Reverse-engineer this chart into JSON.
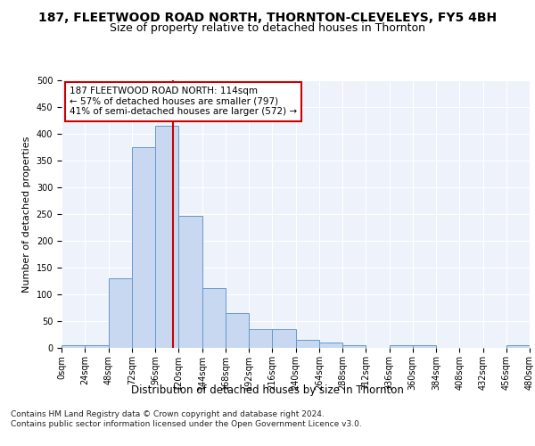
{
  "title": "187, FLEETWOOD ROAD NORTH, THORNTON-CLEVELEYS, FY5 4BH",
  "subtitle": "Size of property relative to detached houses in Thornton",
  "xlabel": "Distribution of detached houses by size in Thornton",
  "ylabel": "Number of detached properties",
  "bar_color": "#c8d8f0",
  "bar_edge_color": "#6699cc",
  "background_color": "#eef2fb",
  "bin_width": 24,
  "bin_starts": [
    0,
    24,
    48,
    72,
    96,
    120,
    144,
    168,
    192,
    216,
    240,
    264,
    288,
    312,
    336,
    360,
    384,
    408,
    432,
    456
  ],
  "bar_heights": [
    5,
    5,
    130,
    375,
    415,
    247,
    111,
    65,
    35,
    35,
    15,
    10,
    5,
    0,
    5,
    5,
    0,
    0,
    0,
    5
  ],
  "property_size": 114,
  "marker_line_color": "#cc0000",
  "annotation_line1": "187 FLEETWOOD ROAD NORTH: 114sqm",
  "annotation_line2": "← 57% of detached houses are smaller (797)",
  "annotation_line3": "41% of semi-detached houses are larger (572) →",
  "annotation_box_color": "#ffffff",
  "annotation_box_edge_color": "#cc0000",
  "ylim": [
    0,
    500
  ],
  "yticks": [
    0,
    50,
    100,
    150,
    200,
    250,
    300,
    350,
    400,
    450,
    500
  ],
  "footer_line1": "Contains HM Land Registry data © Crown copyright and database right 2024.",
  "footer_line2": "Contains public sector information licensed under the Open Government Licence v3.0.",
  "title_fontsize": 10,
  "subtitle_fontsize": 9,
  "tick_label_fontsize": 7,
  "ylabel_fontsize": 8,
  "xlabel_fontsize": 8.5,
  "annotation_fontsize": 7.5,
  "footer_fontsize": 6.5
}
